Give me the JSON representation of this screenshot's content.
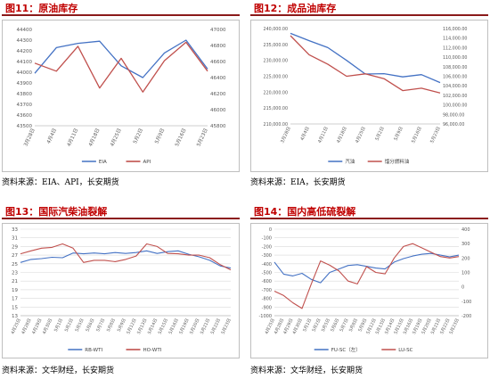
{
  "panels": [
    {
      "title": "图11：原油库存",
      "source": "资料来源：EIA、API，长安期货",
      "chart_data": {
        "type": "line",
        "x": [
          "3月28日",
          "4月4日",
          "4月11日",
          "4月18日",
          "4月25日",
          "5月2日",
          "5月9日",
          "5月16日",
          "5月23日"
        ],
        "left_axis": {
          "ylim": [
            43500,
            44400
          ],
          "ticks": [
            43500,
            43600,
            43700,
            43800,
            43900,
            44000,
            44100,
            44200,
            44300,
            44400
          ]
        },
        "right_axis": {
          "ylim": [
            45800,
            47000
          ],
          "ticks": [
            45800,
            46000,
            46200,
            46400,
            46600,
            46800,
            47000
          ]
        },
        "series": [
          {
            "name": "EIA",
            "axis": "left",
            "color": "#4472c4",
            "values": [
              43990,
              44230,
              44270,
              44290,
              44060,
              43950,
              44180,
              44300,
              44030
            ]
          },
          {
            "name": "API",
            "axis": "right",
            "color": "#c0504d",
            "values": [
              46580,
              46480,
              46790,
              46270,
              46640,
              46220,
              46610,
              46840,
              46480
            ]
          }
        ]
      }
    },
    {
      "title": "图12：成品油库存",
      "source": "资料来源：EIA，长安期货",
      "chart_data": {
        "type": "line",
        "x": [
          "3月28日",
          "4月4日",
          "4月11日",
          "4月18日",
          "4月25日",
          "5月2日",
          "5月9日",
          "5月16日",
          "5月23日"
        ],
        "left_axis": {
          "ylim": [
            210000,
            240000
          ],
          "ticks": [
            210000,
            215000,
            220000,
            225000,
            230000,
            235000,
            240000
          ],
          "tick_labels": [
            "210,000.00",
            "215,000.00",
            "220,000.00",
            "225,000.00",
            "230,000.00",
            "235,000.00",
            "240,000.00"
          ]
        },
        "right_axis": {
          "ylim": [
            96000,
            116000
          ],
          "ticks": [
            96000,
            98000,
            100000,
            102000,
            104000,
            106000,
            108000,
            110000,
            112000,
            114000,
            116000
          ],
          "tick_labels": [
            "96,000.00",
            "98,000.00",
            "100,000.00",
            "102,000.00",
            "104,000.00",
            "106,000.00",
            "108,000.00",
            "110,000.00",
            "112,000.00",
            "114,000.00",
            "116,000.00"
          ]
        },
        "series": [
          {
            "name": "汽油",
            "axis": "left",
            "color": "#4472c4",
            "values": [
              238500,
              236200,
              234000,
              230000,
              225700,
              225800,
              224800,
              225500,
              223000
            ]
          },
          {
            "name": "馏分燃料油",
            "axis": "right",
            "color": "#c0504d",
            "values": [
              114500,
              110500,
              108500,
              106000,
              106500,
              105500,
              103000,
              103500,
              102500
            ]
          }
        ]
      }
    },
    {
      "title": "图13：国际汽柴油裂解",
      "source": "资料来源：文华财经，长安期货",
      "chart_data": {
        "type": "line",
        "x": [
          "4月25日",
          "4月28日",
          "4月29日",
          "4月30日",
          "5月1日",
          "5月2日",
          "5月5日",
          "5月6日",
          "5月7日",
          "5月8日",
          "5月9日",
          "5月12日",
          "5月13日",
          "5月14日",
          "5月15日",
          "5月16日",
          "5月19日",
          "5月20日",
          "5月21日",
          "5月22日",
          "5月23日"
        ],
        "ylim": [
          13,
          33
        ],
        "ticks": [
          13,
          15,
          17,
          19,
          21,
          23,
          25,
          27,
          29,
          31,
          33
        ],
        "series": [
          {
            "name": "RB-WTI",
            "color": "#4472c4",
            "values": [
              25.3,
              26.0,
              26.2,
              26.5,
              26.4,
              27.5,
              27.3,
              27.5,
              27.3,
              27.6,
              27.4,
              27.6,
              28.0,
              27.4,
              27.8,
              28.0,
              27.2,
              26.6,
              25.8,
              24.5,
              24.0
            ]
          },
          {
            "name": "HO-WTI",
            "color": "#c0504d",
            "values": [
              27.3,
              28.0,
              28.6,
              28.8,
              29.6,
              28.6,
              25.3,
              25.8,
              25.8,
              25.5,
              26.0,
              26.8,
              29.6,
              29.0,
              27.4,
              27.3,
              27.0,
              27.0,
              26.4,
              24.8,
              23.6
            ]
          }
        ]
      }
    },
    {
      "title": "图14：国内高低硫裂解",
      "source": "资料来源：文华财经，长安期货",
      "chart_data": {
        "type": "line",
        "x": [
          "4月25日",
          "4月28日",
          "4月29日",
          "4月30日",
          "5月1日",
          "5月2日",
          "5月5日",
          "5月6日",
          "5月7日",
          "5月8日",
          "5月9日",
          "5月12日",
          "5月13日",
          "5月14日",
          "5月15日",
          "5月16日",
          "5月19日",
          "5月20日",
          "5月21日",
          "5月22日",
          "5月23日"
        ],
        "left_axis": {
          "ylim": [
            -1000,
            0
          ],
          "ticks": [
            -1000,
            -900,
            -800,
            -700,
            -600,
            -500,
            -400,
            -300,
            -200,
            -100,
            0
          ]
        },
        "right_axis": {
          "ylim": [
            -200,
            400
          ],
          "ticks": [
            -200,
            -100,
            0,
            100,
            200,
            300,
            400
          ]
        },
        "series": [
          {
            "name": "FU-SC（左）",
            "axis": "left",
            "color": "#4472c4",
            "values": [
              -380,
              -520,
              -540,
              -510,
              -580,
              -620,
              -500,
              -460,
              -420,
              -410,
              -430,
              -450,
              -460,
              -380,
              -340,
              -310,
              -290,
              -280,
              -300,
              -320,
              -300
            ]
          },
          {
            "name": "LU-SC",
            "axis": "right",
            "color": "#c0504d",
            "values": [
              -30,
              -60,
              -110,
              -150,
              20,
              180,
              150,
              110,
              40,
              20,
              140,
              100,
              90,
              200,
              280,
              300,
              270,
              240,
              210,
              200,
              210
            ]
          }
        ]
      }
    }
  ]
}
